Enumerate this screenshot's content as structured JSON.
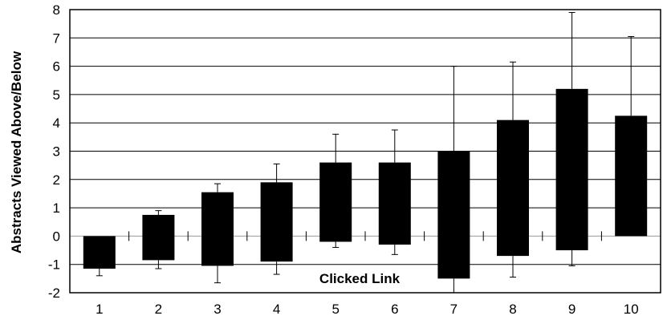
{
  "chart_data": {
    "type": "bar",
    "ylabel": "Abstracts Viewed Above/Below",
    "annotation": "Clicked Link",
    "ylim": [
      -2,
      8
    ],
    "yticks": [
      "-2",
      "-1",
      "0",
      "1",
      "2",
      "3",
      "4",
      "5",
      "6",
      "7",
      "8"
    ],
    "categories": [
      "1",
      "2",
      "3",
      "4",
      "5",
      "6",
      "7",
      "8",
      "9",
      "10"
    ],
    "bars": [
      {
        "low": -1.15,
        "high": 0.0,
        "err_low": -1.4,
        "err_high": 0.0
      },
      {
        "low": -0.85,
        "high": 0.75,
        "err_low": -1.15,
        "err_high": 0.9
      },
      {
        "low": -1.05,
        "high": 1.55,
        "err_low": -1.65,
        "err_high": 1.85
      },
      {
        "low": -0.9,
        "high": 1.9,
        "err_low": -1.35,
        "err_high": 2.55
      },
      {
        "low": -0.2,
        "high": 2.6,
        "err_low": -0.4,
        "err_high": 3.6
      },
      {
        "low": -0.3,
        "high": 2.6,
        "err_low": -0.65,
        "err_high": 3.75
      },
      {
        "low": -1.5,
        "high": 3.0,
        "err_low": -2.0,
        "err_high": 6.0
      },
      {
        "low": -0.7,
        "high": 4.1,
        "err_low": -1.45,
        "err_high": 6.15
      },
      {
        "low": -0.5,
        "high": 5.2,
        "err_low": -1.05,
        "err_high": 7.9
      },
      {
        "low": 0.0,
        "high": 4.25,
        "err_low": 0.0,
        "err_high": 7.05
      }
    ],
    "grid": true,
    "colors": {
      "bar": "#000000",
      "grid": "#000000",
      "zero_line": "#999999"
    }
  }
}
